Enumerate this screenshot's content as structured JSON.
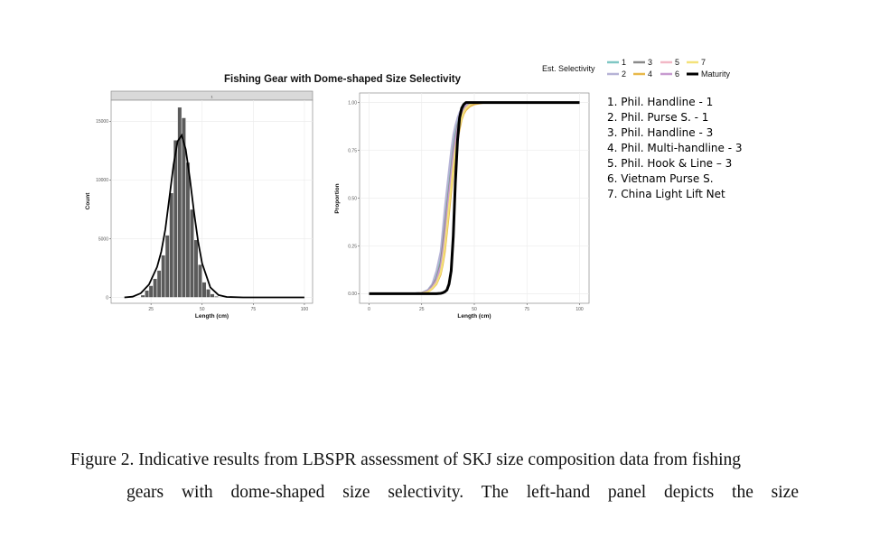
{
  "figure": {
    "title": "Fishing Gear with Dome-shaped Size Selectivity",
    "legend_title": "Est. Selectivity",
    "legend_entries": [
      {
        "key": "1",
        "color": "#7fc7c4"
      },
      {
        "key": "3",
        "color": "#8a8a8a"
      },
      {
        "key": "5",
        "color": "#f2b8c6"
      },
      {
        "key": "7",
        "color": "#f4e27a"
      },
      {
        "key": "2",
        "color": "#b6b3d6"
      },
      {
        "key": "4",
        "color": "#e8b84a"
      },
      {
        "key": "6",
        "color": "#c79bd0"
      },
      {
        "key": "Maturity",
        "color": "#000000"
      }
    ],
    "gear_list": [
      "1. Phil. Handline - 1",
      "2. Phil. Purse S. - 1",
      "3. Phil. Handline - 3",
      "4. Phil. Multi-handline - 3",
      "5. Phil. Hook & Line – 3",
      "6. Vietnam Purse S.",
      "7. China Light Lift Net"
    ]
  },
  "caption": {
    "line1": "Figure 2. Indicative results from LBSPR assessment of SKJ size composition data from fishing",
    "line2": "gears with dome-shaped size selectivity. The left-hand panel depicts the size"
  },
  "chart_data": [
    {
      "type": "bar",
      "strip_label": "1",
      "xlabel": "Length (cm)",
      "ylabel": "Count",
      "xlim": [
        0,
        100
      ],
      "ylim": [
        -500,
        16800
      ],
      "xticks": [
        25,
        50,
        75,
        100
      ],
      "yticks": [
        0,
        5000,
        10000,
        15000
      ],
      "grid": true,
      "bar_width": 2,
      "bar_color": "#5b5b5b",
      "bars": [
        {
          "x": 21,
          "y": 200
        },
        {
          "x": 23,
          "y": 600
        },
        {
          "x": 25,
          "y": 1000
        },
        {
          "x": 27,
          "y": 1600
        },
        {
          "x": 29,
          "y": 2300
        },
        {
          "x": 31,
          "y": 3600
        },
        {
          "x": 33,
          "y": 5300
        },
        {
          "x": 35,
          "y": 8900
        },
        {
          "x": 37,
          "y": 13400
        },
        {
          "x": 39,
          "y": 16200
        },
        {
          "x": 41,
          "y": 15300
        },
        {
          "x": 43,
          "y": 11500
        },
        {
          "x": 45,
          "y": 7500
        },
        {
          "x": 47,
          "y": 4900
        },
        {
          "x": 49,
          "y": 2800
        },
        {
          "x": 51,
          "y": 1300
        },
        {
          "x": 53,
          "y": 700
        },
        {
          "x": 55,
          "y": 300
        },
        {
          "x": 57,
          "y": 100
        }
      ],
      "fit_line": {
        "name": "Fitted",
        "color": "#000000",
        "x": [
          12,
          16,
          20,
          24,
          28,
          30,
          32,
          34,
          36,
          38,
          40,
          42,
          44,
          46,
          48,
          50,
          54,
          58,
          62,
          70,
          80,
          100
        ],
        "y": [
          0,
          60,
          350,
          1100,
          2600,
          3900,
          5800,
          8500,
          11300,
          13300,
          13800,
          12600,
          10100,
          7300,
          4800,
          2900,
          850,
          200,
          40,
          0,
          0,
          0
        ]
      }
    },
    {
      "type": "line",
      "xlabel": "Length (cm)",
      "ylabel": "Proportion",
      "xlim": [
        0,
        100
      ],
      "ylim": [
        0,
        1
      ],
      "xticks": [
        0,
        25,
        50,
        75,
        100
      ],
      "yticks": [
        0.0,
        0.25,
        0.5,
        0.75,
        1.0
      ],
      "ytick_labels": [
        "0.00",
        "0.25",
        "0.50",
        "0.75",
        "1.00"
      ],
      "grid": true,
      "legend_position": "top-right",
      "x": [
        0,
        10,
        20,
        25,
        28,
        30,
        32,
        34,
        35,
        36,
        37,
        38,
        39,
        40,
        41,
        42,
        43,
        44,
        45,
        46,
        48,
        50,
        55,
        60,
        100
      ],
      "series": [
        {
          "name": "1",
          "color": "#7fc7c4",
          "width": 2,
          "values": [
            0,
            0,
            0,
            0.005,
            0.02,
            0.05,
            0.1,
            0.2,
            0.3,
            0.4,
            0.5,
            0.6,
            0.7,
            0.8,
            0.86,
            0.9,
            0.94,
            0.96,
            0.97,
            0.98,
            0.99,
            1,
            1,
            1,
            1
          ]
        },
        {
          "name": "2",
          "color": "#b6b3d6",
          "width": 2,
          "values": [
            0,
            0,
            0,
            0.005,
            0.02,
            0.05,
            0.12,
            0.22,
            0.33,
            0.45,
            0.55,
            0.65,
            0.75,
            0.83,
            0.88,
            0.92,
            0.95,
            0.97,
            0.98,
            0.99,
            1,
            1,
            1,
            1,
            1
          ]
        },
        {
          "name": "3",
          "color": "#8a8a8a",
          "width": 2,
          "values": [
            0,
            0,
            0,
            0.004,
            0.015,
            0.04,
            0.08,
            0.16,
            0.25,
            0.35,
            0.45,
            0.55,
            0.65,
            0.75,
            0.82,
            0.88,
            0.92,
            0.95,
            0.97,
            0.98,
            0.99,
            1,
            1,
            1,
            1
          ]
        },
        {
          "name": "4",
          "color": "#e8b84a",
          "width": 2,
          "values": [
            0,
            0,
            0,
            0.003,
            0.01,
            0.025,
            0.05,
            0.1,
            0.15,
            0.22,
            0.32,
            0.42,
            0.53,
            0.63,
            0.72,
            0.8,
            0.86,
            0.91,
            0.94,
            0.96,
            0.98,
            0.99,
            1,
            1,
            1
          ]
        },
        {
          "name": "5",
          "color": "#f2b8c6",
          "width": 2,
          "values": [
            0,
            0,
            0,
            0.003,
            0.012,
            0.03,
            0.06,
            0.12,
            0.18,
            0.27,
            0.37,
            0.48,
            0.58,
            0.68,
            0.77,
            0.84,
            0.89,
            0.93,
            0.95,
            0.97,
            0.99,
            1,
            1,
            1,
            1
          ]
        },
        {
          "name": "6",
          "color": "#c79bd0",
          "width": 2,
          "values": [
            0,
            0,
            0,
            0.004,
            0.014,
            0.035,
            0.07,
            0.14,
            0.21,
            0.3,
            0.41,
            0.52,
            0.62,
            0.72,
            0.8,
            0.86,
            0.91,
            0.94,
            0.96,
            0.98,
            0.99,
            1,
            1,
            1,
            1
          ]
        },
        {
          "name": "7",
          "color": "#f4e27a",
          "width": 2,
          "values": [
            0,
            0,
            0,
            0.003,
            0.01,
            0.028,
            0.055,
            0.11,
            0.17,
            0.25,
            0.35,
            0.46,
            0.56,
            0.66,
            0.75,
            0.82,
            0.88,
            0.92,
            0.95,
            0.97,
            0.99,
            1,
            1,
            1,
            1
          ]
        },
        {
          "name": "Maturity",
          "color": "#000000",
          "width": 3,
          "values": [
            0,
            0,
            0,
            0,
            0,
            0,
            0,
            0.002,
            0.005,
            0.01,
            0.02,
            0.05,
            0.12,
            0.3,
            0.58,
            0.8,
            0.92,
            0.97,
            0.99,
            1,
            1,
            1,
            1,
            1,
            1
          ]
        }
      ]
    }
  ]
}
